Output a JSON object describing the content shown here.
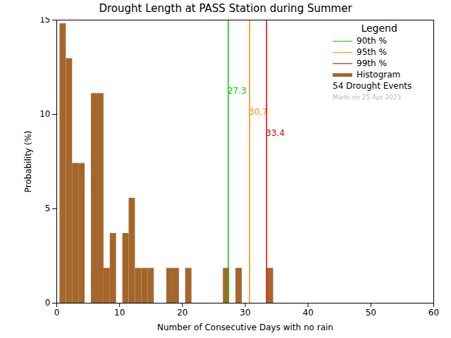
{
  "chart_data": {
    "type": "histogram",
    "title": "Drought Length at PASS Station during Summer",
    "x_label": "Number of Consecutive Days with no rain",
    "y_label": "Probability (%)",
    "bins": [
      0.5,
      1.5,
      2.5,
      3.5,
      4.5,
      5.5,
      6.5,
      7.5,
      8.5,
      9.5,
      10.5,
      11.5,
      12.5,
      13.5,
      14.5,
      15.5,
      16.5,
      17.5,
      18.5,
      19.5,
      20.5,
      21.5,
      22.5,
      23.5,
      24.5,
      25.5,
      26.5,
      27.5,
      28.5,
      29.5,
      30.5,
      31.5,
      32.5,
      33.5,
      34.5
    ],
    "values": [
      14.81,
      12.96,
      7.41,
      7.41,
      0,
      11.11,
      11.11,
      1.85,
      3.7,
      0,
      3.7,
      5.56,
      1.85,
      1.85,
      1.85,
      0,
      0,
      1.85,
      1.85,
      0,
      1.85,
      0,
      0,
      0,
      0,
      0,
      1.85,
      0,
      1.85,
      0,
      0,
      0,
      0,
      1.85
    ],
    "name": "Histogram",
    "color": "#a5662b",
    "percentiles": [
      {
        "name": "90th %",
        "value": 27.3,
        "color": "#00cc00"
      },
      {
        "name": "95th %",
        "value": 30.7,
        "color": "#ff8c00"
      },
      {
        "name": "99th %",
        "value": 33.4,
        "color": "#dd0000"
      }
    ],
    "xlim": [
      0,
      60
    ],
    "xticks": [
      0,
      10,
      20,
      30,
      40,
      50,
      60
    ],
    "ylim": [
      0,
      15
    ],
    "yticks": [
      0,
      5,
      10,
      15
    ],
    "legend": "top-right",
    "legend_title": "Legend",
    "annotations": [
      "54 Drought Events",
      "Made on 25 Apr 2025"
    ]
  }
}
